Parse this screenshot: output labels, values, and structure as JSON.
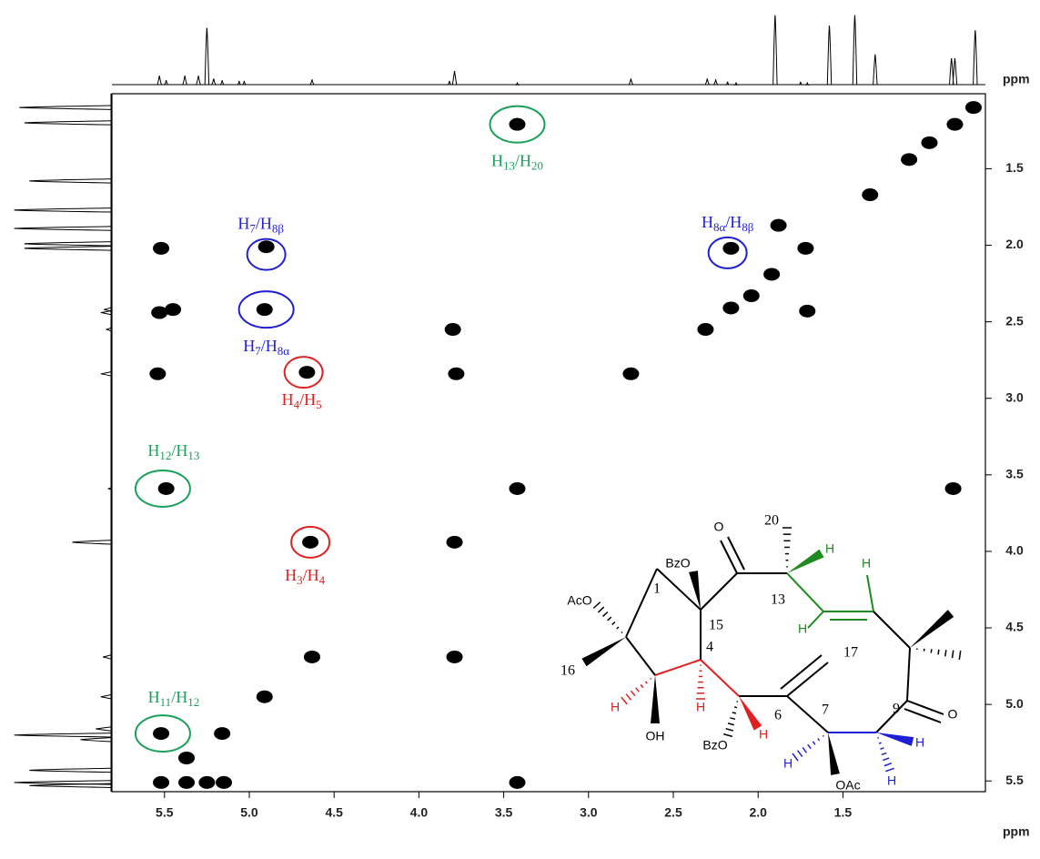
{
  "chart_data": {
    "type": "scatter",
    "xlabel": "ppm",
    "ylabel": "ppm",
    "color": "#000000",
    "xlim": [
      5.81,
      0.66
    ],
    "ylim": [
      1.01,
      5.57
    ],
    "xticks": [
      5.5,
      {
        "value": 5.0,
        "label": "5.0"
      },
      4.5,
      {
        "value": 4.0,
        "label": "4.0"
      },
      3.5,
      {
        "value": 3.0,
        "label": "3.0"
      },
      2.5,
      {
        "value": 2.0,
        "label": "2.0"
      },
      1.5
    ],
    "yticks": [
      1.5,
      {
        "value": 2.0,
        "label": "2.0"
      },
      2.5,
      {
        "value": 3.0,
        "label": "3.0"
      },
      3.5,
      {
        "value": 4.0,
        "label": "4.0"
      },
      4.5,
      {
        "value": 5.0,
        "label": "5.0"
      },
      5.5
    ],
    "x": [
      3.42,
      0.84,
      0.73,
      0.99,
      1.11,
      1.34,
      1.88,
      5.52,
      4.9,
      2.16,
      1.72,
      5.53,
      5.45,
      4.91,
      2.16,
      1.71,
      1.92,
      2.04,
      3.8,
      2.31,
      5.54,
      4.66,
      3.78,
      2.75,
      5.49,
      3.42,
      0.85,
      4.64,
      3.79,
      4.63,
      3.79,
      4.91,
      5.52,
      5.16,
      5.37,
      5.52,
      5.37,
      5.25,
      5.15,
      3.42
    ],
    "values": [
      1.21,
      1.21,
      1.1,
      1.33,
      1.44,
      1.67,
      1.87,
      2.02,
      2.01,
      2.02,
      2.02,
      2.44,
      2.42,
      2.42,
      2.41,
      2.43,
      2.19,
      2.33,
      2.55,
      2.55,
      2.84,
      2.83,
      2.84,
      2.84,
      3.59,
      3.59,
      3.59,
      3.94,
      3.94,
      4.69,
      4.69,
      4.95,
      5.19,
      5.19,
      5.35,
      5.51,
      5.51,
      5.51,
      5.51,
      5.51
    ],
    "top_spectrum": {
      "ppm": [
        5.53,
        5.49,
        5.38,
        5.3,
        5.25,
        5.21,
        5.16,
        5.06,
        5.03,
        4.63,
        3.82,
        3.79,
        3.42,
        2.75,
        2.3,
        2.25,
        2.18,
        2.13,
        1.9,
        1.75,
        1.71,
        1.58,
        1.43,
        1.31,
        0.86,
        0.84,
        0.72
      ],
      "intensity": [
        0.12,
        0.06,
        0.12,
        0.12,
        0.75,
        0.08,
        0.06,
        0.05,
        0.05,
        0.07,
        0.05,
        0.18,
        0.03,
        0.08,
        0.08,
        0.07,
        0.04,
        0.03,
        0.92,
        0.04,
        0.03,
        0.78,
        0.92,
        0.4,
        0.35,
        0.35,
        0.72
      ]
    },
    "left_spectrum": {
      "ppm": [
        1.1,
        1.2,
        1.58,
        1.77,
        1.89,
        1.99,
        2.02,
        2.42,
        2.44,
        2.55,
        2.84,
        3.59,
        3.94,
        4.69,
        4.95,
        5.16,
        5.2,
        5.23,
        5.43,
        5.51,
        5.53
      ],
      "intensity": [
        0.9,
        0.85,
        0.8,
        0.95,
        0.95,
        0.85,
        0.85,
        0.07,
        0.1,
        0.05,
        0.1,
        0.03,
        0.38,
        0.08,
        0.1,
        0.15,
        0.95,
        0.3,
        0.8,
        0.95,
        0.8
      ]
    },
    "annotations": [
      {
        "segments": [
          "H",
          "13",
          "/H",
          "20"
        ],
        "color": "#1aa05a",
        "x": 3.42,
        "y": 1.21
      },
      {
        "segments": [
          "H",
          "7",
          "/H",
          "8β"
        ],
        "color": "#1f1fd6",
        "x": 4.9,
        "y": 2.06
      },
      {
        "segments": [
          "H",
          "7",
          "/H",
          "8α"
        ],
        "color": "#1f1fd6",
        "x": 4.9,
        "y": 2.42
      },
      {
        "segments": [
          "H",
          "8α",
          "/H",
          "8β"
        ],
        "color": "#1f1fd6",
        "x": 2.18,
        "y": 2.05
      },
      {
        "segments": [
          "H",
          "4",
          "/H",
          "5"
        ],
        "color": "#e02020",
        "x": 4.68,
        "y": 2.83
      },
      {
        "segments": [
          "H",
          "12",
          "/H",
          "13"
        ],
        "color": "#1aa05a",
        "x": 5.51,
        "y": 3.59
      },
      {
        "segments": [
          "H",
          "3",
          "/H",
          "4"
        ],
        "color": "#e02020",
        "x": 4.64,
        "y": 3.94
      },
      {
        "segments": [
          "H",
          "11",
          "/H",
          "12"
        ],
        "color": "#1aa05a",
        "x": 5.51,
        "y": 5.19
      }
    ],
    "structure_labels": [
      "O",
      "20",
      "H",
      "H",
      "BzO",
      "13",
      "AcO",
      "1",
      "15",
      "4",
      "H",
      "17",
      "16",
      "9",
      "O",
      "6",
      "7",
      "H",
      "H",
      "OH",
      "BzO",
      "H",
      "H",
      "OAc",
      "H",
      "H"
    ]
  }
}
